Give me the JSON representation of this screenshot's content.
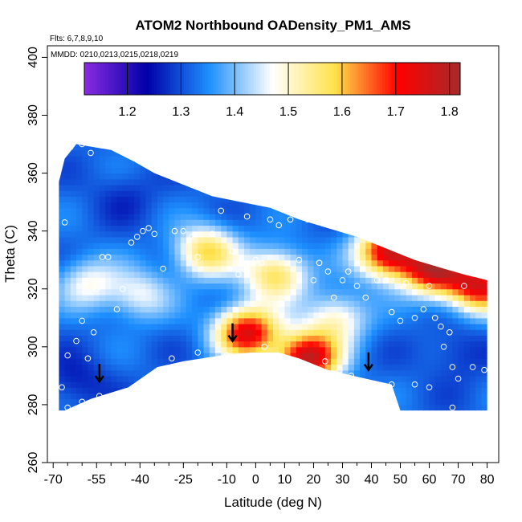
{
  "chart_data": {
    "type": "heatmap",
    "title": "ATOM2 Northbound OADensity_PM1_AMS",
    "subtitle_flights": "Flts: 6,7,8,9,10",
    "subtitle_dates": "MMDD: 0210,0213,0215,0218,0219",
    "xlabel": "Latitude (deg N)",
    "ylabel": "Theta (C)",
    "xlim": [
      -72,
      84
    ],
    "ylim": [
      260,
      404
    ],
    "x_ticks": [
      -70,
      -55,
      -40,
      -25,
      -10,
      0,
      10,
      20,
      30,
      40,
      50,
      60,
      70,
      80
    ],
    "x_tick_labels": [
      "-70",
      "-55",
      "-40",
      "-25",
      "-10",
      "0",
      "10",
      "20",
      "30",
      "40",
      "50",
      "60",
      "70",
      "80"
    ],
    "x_minor_ticks": [
      -65,
      -60,
      -50,
      -45,
      -35,
      -30,
      -20,
      -15,
      -5,
      5,
      15,
      25,
      35,
      45,
      55,
      65,
      75
    ],
    "y_ticks": [
      260,
      280,
      300,
      320,
      340,
      360,
      380,
      400
    ],
    "y_tick_labels": [
      "260",
      "280",
      "300",
      "320",
      "340",
      "360",
      "380",
      "400"
    ],
    "colorbar": {
      "range": [
        1.12,
        1.82
      ],
      "ticks": [
        1.2,
        1.3,
        1.4,
        1.5,
        1.6,
        1.7,
        1.8
      ],
      "tick_labels": [
        "1.2",
        "1.3",
        "1.4",
        "1.5",
        "1.6",
        "1.7",
        "1.8"
      ],
      "colors": [
        "#8B2BE2",
        "#0000A8",
        "#1E90FF",
        "#ffffff",
        "#FFE24A",
        "#FF0000",
        "#A52A2A"
      ]
    },
    "color_values": {
      "base": 1.32,
      "hotspots": [
        {
          "lat": -3,
          "theta": 305,
          "value": 1.74
        },
        {
          "lat": 18,
          "theta": 296,
          "value": 1.78
        },
        {
          "lat": 46,
          "theta": 333,
          "value": 1.76
        },
        {
          "lat": 62,
          "theta": 327,
          "value": 1.74
        },
        {
          "lat": 78,
          "theta": 321,
          "value": 1.72
        },
        {
          "lat": -17,
          "theta": 333,
          "value": 1.58
        },
        {
          "lat": 7,
          "theta": 325,
          "value": 1.58
        },
        {
          "lat": -40,
          "theta": 318,
          "value": 1.46
        },
        {
          "lat": -58,
          "theta": 322,
          "value": 1.47
        },
        {
          "lat": 28,
          "theta": 310,
          "value": 1.5
        }
      ],
      "lows": [
        {
          "lat": -62,
          "theta": 288,
          "value": 1.26
        },
        {
          "lat": 70,
          "theta": 298,
          "value": 1.27
        },
        {
          "lat": -45,
          "theta": 352,
          "value": 1.28
        }
      ]
    },
    "domain_top": [
      [
        -68,
        357
      ],
      [
        -66,
        365
      ],
      [
        -62,
        370
      ],
      [
        -50,
        368
      ],
      [
        -42,
        364
      ],
      [
        -35,
        360
      ],
      [
        -25,
        356
      ],
      [
        -15,
        352
      ],
      [
        -5,
        350
      ],
      [
        5,
        348
      ],
      [
        15,
        344
      ],
      [
        25,
        341
      ],
      [
        35,
        338
      ],
      [
        45,
        334
      ],
      [
        55,
        330
      ],
      [
        65,
        327
      ],
      [
        72,
        325
      ],
      [
        80,
        323
      ]
    ],
    "domain_bottom": [
      [
        80,
        278
      ],
      [
        50,
        278
      ],
      [
        47,
        287
      ],
      [
        38,
        289
      ],
      [
        25,
        292
      ],
      [
        15,
        296
      ],
      [
        8,
        298
      ],
      [
        -2,
        298
      ],
      [
        -12,
        297
      ],
      [
        -25,
        295
      ],
      [
        -34,
        293
      ],
      [
        -44,
        286
      ],
      [
        -57,
        282
      ],
      [
        -66,
        278
      ],
      [
        -68,
        278
      ]
    ],
    "flight_points": [
      [
        -66,
        343
      ],
      [
        -64,
        369
      ],
      [
        -60,
        370
      ],
      [
        -57,
        367
      ],
      [
        -56,
        305
      ],
      [
        -55,
        320
      ],
      [
        -53,
        331
      ],
      [
        -51,
        331
      ],
      [
        -48,
        313
      ],
      [
        -46,
        320
      ],
      [
        -43,
        336
      ],
      [
        -41,
        338
      ],
      [
        -39,
        340
      ],
      [
        -37,
        341
      ],
      [
        -35,
        339
      ],
      [
        -32,
        327
      ],
      [
        -28,
        340
      ],
      [
        -25,
        340
      ],
      [
        -22,
        338
      ],
      [
        -20,
        331
      ],
      [
        -15,
        339
      ],
      [
        -12,
        347
      ],
      [
        -8,
        333
      ],
      [
        -6,
        325
      ],
      [
        -3,
        345
      ],
      [
        0,
        330
      ],
      [
        2,
        329
      ],
      [
        5,
        344
      ],
      [
        8,
        342
      ],
      [
        12,
        344
      ],
      [
        15,
        330
      ],
      [
        18,
        344
      ],
      [
        20,
        323
      ],
      [
        22,
        329
      ],
      [
        25,
        326
      ],
      [
        27,
        317
      ],
      [
        30,
        323
      ],
      [
        32,
        326
      ],
      [
        35,
        321
      ],
      [
        38,
        317
      ],
      [
        42,
        323
      ],
      [
        45,
        323
      ],
      [
        47,
        312
      ],
      [
        50,
        309
      ],
      [
        52,
        322
      ],
      [
        55,
        310
      ],
      [
        58,
        313
      ],
      [
        60,
        321
      ],
      [
        62,
        310
      ],
      [
        64,
        307
      ],
      [
        65,
        300
      ],
      [
        67,
        305
      ],
      [
        68,
        293
      ],
      [
        70,
        289
      ],
      [
        72,
        321
      ],
      [
        -62,
        302
      ],
      [
        -60,
        309
      ],
      [
        -58,
        296
      ],
      [
        -65,
        297
      ],
      [
        -67,
        286
      ],
      [
        -43,
        284
      ],
      [
        -29,
        296
      ],
      [
        -20,
        298
      ],
      [
        -10,
        297
      ],
      [
        3,
        300
      ],
      [
        13,
        294
      ],
      [
        19,
        292
      ],
      [
        24,
        295
      ],
      [
        29,
        292
      ],
      [
        33,
        290
      ],
      [
        42,
        287
      ],
      [
        47,
        287
      ],
      [
        55,
        287
      ],
      [
        60,
        286
      ],
      [
        68,
        279
      ],
      [
        75,
        293
      ],
      [
        79,
        292
      ],
      [
        -54,
        283
      ],
      [
        -60,
        281
      ],
      [
        -65,
        279
      ]
    ],
    "arrows": [
      {
        "lat": -54,
        "theta": 288
      },
      {
        "lat": -8,
        "theta": 302
      },
      {
        "lat": 39,
        "theta": 292
      }
    ]
  }
}
